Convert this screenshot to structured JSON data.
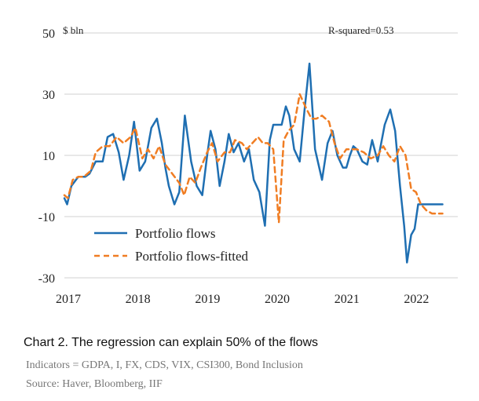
{
  "chart_data": {
    "type": "line",
    "ylabel": "$ bln",
    "annotation": "R-squared=0.53",
    "ylim": [
      -30,
      50
    ],
    "yticks": [
      50,
      30,
      10,
      -10,
      -30
    ],
    "ytick_labels": [
      "50",
      "30",
      "10",
      "-10",
      "-30"
    ],
    "xlim": [
      2017.0,
      2022.65
    ],
    "xticks": [
      2017,
      2018,
      2019,
      2020,
      2021,
      2022
    ],
    "xtick_labels": [
      "2017",
      "2018",
      "2019",
      "2020",
      "2021",
      "2022"
    ],
    "grid": "horizontal",
    "legend_position": "lower-left",
    "series": [
      {
        "name": "Portfolio flows",
        "color": "#1f6fb2",
        "style": "solid",
        "x": [
          2017.0,
          2017.04,
          2017.1,
          2017.2,
          2017.3,
          2017.36,
          2017.45,
          2017.55,
          2017.62,
          2017.7,
          2017.78,
          2017.85,
          2017.93,
          2018.0,
          2018.08,
          2018.16,
          2018.25,
          2018.33,
          2018.4,
          2018.45,
          2018.5,
          2018.58,
          2018.65,
          2018.73,
          2018.82,
          2018.9,
          2018.98,
          2019.05,
          2019.1,
          2019.17,
          2019.23,
          2019.3,
          2019.36,
          2019.43,
          2019.5,
          2019.58,
          2019.65,
          2019.72,
          2019.8,
          2019.88,
          2019.95,
          2020.0,
          2020.05,
          2020.12,
          2020.18,
          2020.23,
          2020.3,
          2020.38,
          2020.45,
          2020.52,
          2020.6,
          2020.7,
          2020.78,
          2020.85,
          2020.92,
          2021.0,
          2021.05,
          2021.1,
          2021.15,
          2021.2,
          2021.28,
          2021.35,
          2021.42,
          2021.5,
          2021.6,
          2021.68,
          2021.75,
          2021.82,
          2021.88,
          2021.92,
          2021.98,
          2022.03,
          2022.08,
          2022.13,
          2022.2,
          2022.28,
          2022.36,
          2022.43
        ],
        "y": [
          -4,
          -6,
          0,
          3,
          3,
          4,
          8,
          8,
          16,
          17,
          11,
          2,
          10,
          21,
          5,
          8,
          19,
          22,
          14,
          6,
          0,
          -6,
          -2,
          23,
          8,
          0,
          -3,
          10,
          18,
          12,
          0,
          8,
          17,
          11,
          14,
          8,
          12,
          2,
          -2,
          -13,
          15,
          20,
          20,
          20,
          26,
          23,
          12,
          8,
          25,
          40,
          12,
          2,
          14,
          18,
          10,
          6,
          6,
          10,
          13,
          12,
          8,
          7,
          15,
          8,
          20,
          25,
          18,
          0,
          -13,
          -25,
          -16,
          -14,
          -6,
          -6,
          -6,
          -6,
          -6,
          -6
        ]
      },
      {
        "name": "Portfolio flows-fitted",
        "color": "#f07d23",
        "style": "dashed",
        "x": [
          2017.0,
          2017.05,
          2017.12,
          2017.2,
          2017.28,
          2017.38,
          2017.45,
          2017.55,
          2017.65,
          2017.75,
          2017.85,
          2017.95,
          2018.02,
          2018.12,
          2018.2,
          2018.28,
          2018.36,
          2018.45,
          2018.55,
          2018.65,
          2018.72,
          2018.8,
          2018.88,
          2018.96,
          2019.05,
          2019.12,
          2019.2,
          2019.3,
          2019.38,
          2019.45,
          2019.55,
          2019.62,
          2019.7,
          2019.78,
          2019.85,
          2019.92,
          2020.0,
          2020.08,
          2020.15,
          2020.22,
          2020.3,
          2020.38,
          2020.48,
          2020.55,
          2020.62,
          2020.7,
          2020.8,
          2020.88,
          2020.96,
          2021.05,
          2021.12,
          2021.2,
          2021.3,
          2021.4,
          2021.5,
          2021.58,
          2021.66,
          2021.74,
          2021.82,
          2021.9,
          2021.98,
          2022.05,
          2022.12,
          2022.2,
          2022.28,
          2022.36,
          2022.43
        ],
        "y": [
          -3,
          -4,
          2,
          3,
          3,
          5,
          11,
          13,
          13,
          16,
          14,
          16,
          19,
          9,
          12,
          9,
          13,
          7,
          4,
          1,
          -3,
          3,
          1,
          6,
          11,
          14,
          8,
          11,
          11,
          15,
          14,
          12,
          14,
          16,
          14,
          14,
          12,
          -12,
          15,
          18,
          20,
          30,
          25,
          22,
          22,
          23,
          21,
          14,
          9,
          12,
          12,
          12,
          11,
          9,
          10,
          13,
          10,
          8,
          13,
          10,
          -1,
          -2,
          -6,
          -8,
          -9,
          -9,
          -9
        ]
      }
    ]
  },
  "caption": {
    "title": "Chart 2. The regression can explain 50% of the flows",
    "indicators": "Indicators = GDPA, I, FX, CDS, VIX, CSI300, Bond Inclusion",
    "source": "Source: Haver, Bloomberg, IIF"
  }
}
